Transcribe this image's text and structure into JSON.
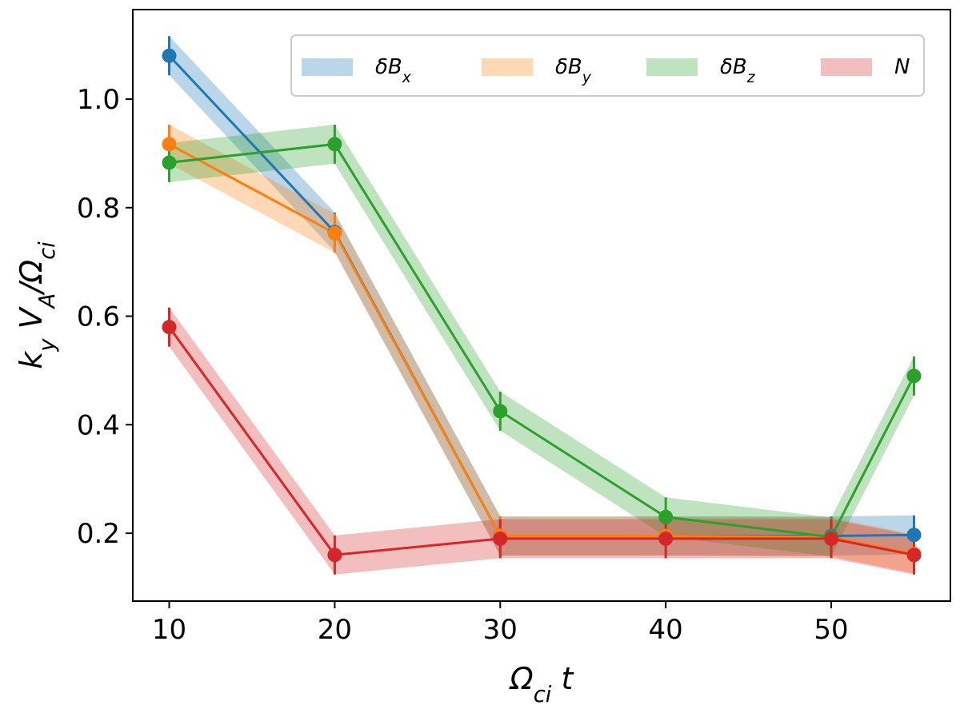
{
  "chart_data": {
    "type": "line",
    "x": [
      10,
      20,
      30,
      40,
      50,
      55
    ],
    "xticks": [
      10,
      20,
      30,
      40,
      50
    ],
    "xtick_labels": [
      "10",
      "20",
      "30",
      "40",
      "50"
    ],
    "yticks": [
      0.2,
      0.4,
      0.6,
      0.8,
      1.0
    ],
    "ytick_labels": [
      "0.2",
      "0.4",
      "0.6",
      "0.8",
      "1.0"
    ],
    "xlim": [
      7.8,
      57.2
    ],
    "ylim": [
      0.075,
      1.165
    ],
    "xlabel": "Ω_ci t",
    "ylabel": "k_y V_A/Ω_ci",
    "band_halfwidth": 0.036,
    "error_halfwidth": 0.036,
    "grid": false,
    "legend_position": "top",
    "series": [
      {
        "name": "δB_x",
        "color": "#1f77b4",
        "values": [
          1.08,
          0.755,
          0.195,
          0.195,
          0.195,
          0.197
        ]
      },
      {
        "name": "δB_y",
        "color": "#ff7f0e",
        "values": [
          0.917,
          0.753,
          0.195,
          0.195,
          0.193,
          0.162
        ]
      },
      {
        "name": "δB_z",
        "color": "#2ca02c",
        "values": [
          0.883,
          0.917,
          0.425,
          0.23,
          0.193,
          0.49
        ]
      },
      {
        "name": "N",
        "color": "#d62728",
        "values": [
          0.58,
          0.16,
          0.19,
          0.19,
          0.19,
          0.16
        ]
      }
    ]
  }
}
